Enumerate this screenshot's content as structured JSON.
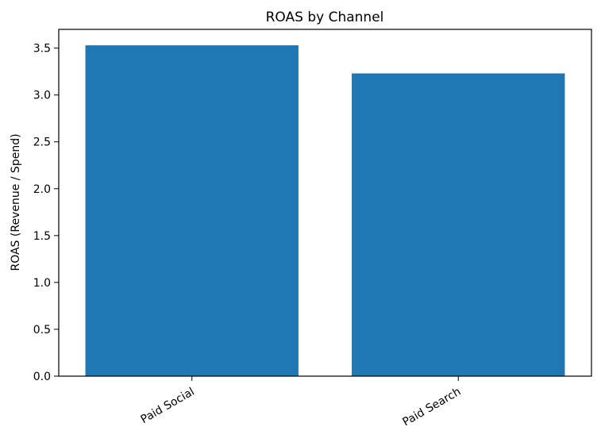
{
  "chart_data": {
    "type": "bar",
    "title": "ROAS by Channel",
    "xlabel": "",
    "ylabel": "ROAS (Revenue / Spend)",
    "categories": [
      "Paid Social",
      "Paid Search"
    ],
    "values": [
      3.53,
      3.23
    ],
    "ylim": [
      0,
      3.7
    ],
    "yticks": [
      0.0,
      0.5,
      1.0,
      1.5,
      2.0,
      2.5,
      3.0,
      3.5
    ],
    "ytick_labels": [
      "0.0",
      "0.5",
      "1.0",
      "1.5",
      "2.0",
      "2.5",
      "3.0",
      "3.5"
    ],
    "xtick_rotation_deg": 30,
    "grid": false,
    "legend": "none",
    "colors": {
      "bar": "#1f77b4",
      "axis": "#000000",
      "background": "#ffffff"
    }
  }
}
